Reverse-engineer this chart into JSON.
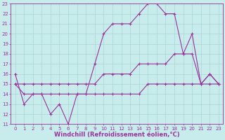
{
  "xlabel": "Windchill (Refroidissement éolien,°C)",
  "bg_color": "#c8ecec",
  "grid_color": "#aad4d4",
  "line_color": "#993399",
  "xmin": 0,
  "xmax": 23,
  "ymin": 11,
  "ymax": 23,
  "line1_x": [
    0,
    1,
    2,
    3,
    4,
    5,
    6,
    7,
    8,
    9,
    10,
    11,
    12,
    13,
    14,
    15,
    16,
    17,
    18,
    19,
    20,
    21,
    22,
    23
  ],
  "line1_y": [
    16,
    13,
    14,
    14,
    12,
    13,
    11,
    14,
    14,
    17,
    20,
    21,
    21,
    21,
    22,
    23,
    23,
    22,
    22,
    18,
    20,
    15,
    16,
    15
  ],
  "line2_x": [
    0,
    1,
    2,
    3,
    4,
    5,
    6,
    7,
    8,
    9,
    10,
    11,
    12,
    13,
    14,
    15,
    16,
    17,
    18,
    19,
    20,
    21,
    22,
    23
  ],
  "line2_y": [
    15,
    15,
    15,
    15,
    15,
    15,
    15,
    15,
    15,
    15,
    16,
    16,
    16,
    16,
    17,
    17,
    17,
    17,
    18,
    18,
    18,
    15,
    16,
    15
  ],
  "line3_x": [
    0,
    1,
    2,
    3,
    4,
    5,
    6,
    7,
    8,
    9,
    10,
    11,
    12,
    13,
    14,
    15,
    16,
    17,
    18,
    19,
    20,
    21,
    22,
    23
  ],
  "line3_y": [
    15,
    14,
    14,
    14,
    14,
    14,
    14,
    14,
    14,
    14,
    14,
    14,
    14,
    14,
    14,
    15,
    15,
    15,
    15,
    15,
    15,
    15,
    15,
    15
  ],
  "tick_fontsize": 5.0,
  "label_fontsize": 6.0
}
